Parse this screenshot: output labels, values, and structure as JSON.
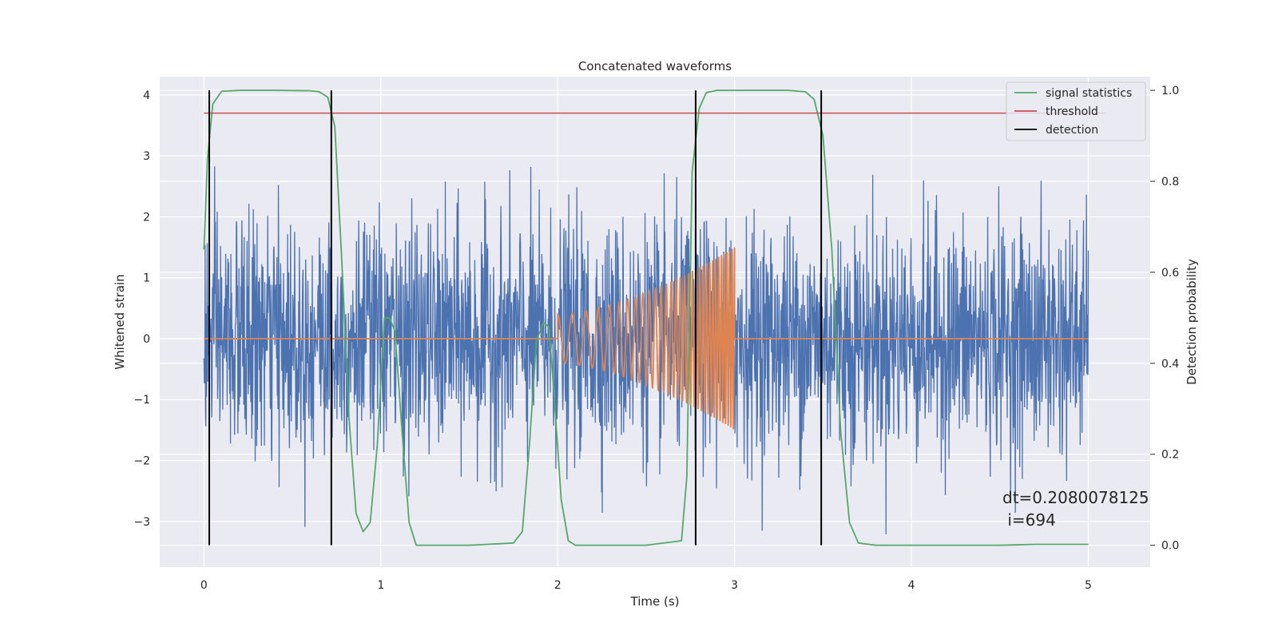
{
  "chart_data": {
    "type": "line",
    "title": "Concatenated waveforms",
    "xlabel": "Time (s)",
    "ylabel": "Whitened strain",
    "ylabel_right": "Detection probability",
    "xlim": [
      -0.25,
      5.35
    ],
    "ylim": [
      -3.75,
      4.3
    ],
    "ylim_right": [
      -0.048,
      1.03
    ],
    "x_ticks": [
      0,
      1,
      2,
      3,
      4,
      5
    ],
    "y_ticks": [
      -3,
      -2,
      -1,
      0,
      1,
      2,
      3,
      4
    ],
    "y_ticks_right": [
      0.0,
      0.2,
      0.4,
      0.6,
      0.8,
      1.0
    ],
    "x_tick_labels": [
      "0",
      "1",
      "2",
      "3",
      "4",
      "5"
    ],
    "y_tick_labels": [
      "−3",
      "−2",
      "−1",
      "0",
      "1",
      "2",
      "3",
      "4"
    ],
    "y_tick_labels_right": [
      "0.0",
      "0.2",
      "0.4",
      "0.6",
      "0.8",
      "1.0"
    ],
    "grid": true,
    "legend_position": "top-right",
    "legend": [
      {
        "label": "signal statistics",
        "color": "#55a868"
      },
      {
        "label": "threshold",
        "color": "#c44e52"
      },
      {
        "label": "detection",
        "color": "#000000"
      }
    ],
    "colors": {
      "strain": "#4c72b0",
      "injection": "#dd8452",
      "signal_statistics": "#55a868",
      "threshold": "#c44e52",
      "detection": "#000000",
      "axes_bg": "#eaeaf2",
      "grid": "#ffffff"
    },
    "series": [
      {
        "name": "signal statistics",
        "axis": "right",
        "x": [
          0,
          0.02,
          0.05,
          0.1,
          0.2,
          0.4,
          0.6,
          0.65,
          0.7,
          0.74,
          0.78,
          0.82,
          0.86,
          0.9,
          0.94,
          0.98,
          1.02,
          1.05,
          1.08,
          1.12,
          1.16,
          1.2,
          1.5,
          1.75,
          1.8,
          1.84,
          1.88,
          1.92,
          1.95,
          1.98,
          2.02,
          2.06,
          2.1,
          2.2,
          2.5,
          2.7,
          2.73,
          2.76,
          2.8,
          2.84,
          2.9,
          3.0,
          3.3,
          3.4,
          3.45,
          3.5,
          3.55,
          3.6,
          3.65,
          3.7,
          3.8,
          4.0,
          4.5,
          4.7,
          5.0
        ],
        "y": [
          0.65,
          0.85,
          0.97,
          0.998,
          1.0,
          1.0,
          0.999,
          0.997,
          0.985,
          0.92,
          0.62,
          0.28,
          0.07,
          0.03,
          0.05,
          0.22,
          0.5,
          0.5,
          0.47,
          0.25,
          0.05,
          0.0,
          0.0,
          0.005,
          0.03,
          0.22,
          0.45,
          0.49,
          0.48,
          0.33,
          0.1,
          0.01,
          0.0,
          0.0,
          0.0,
          0.01,
          0.15,
          0.82,
          0.96,
          0.995,
          1.0,
          1.0,
          1.0,
          0.997,
          0.98,
          0.9,
          0.65,
          0.25,
          0.05,
          0.005,
          0.0,
          0.0,
          0.0,
          0.002,
          0.002
        ]
      },
      {
        "name": "threshold",
        "axis": "right",
        "x": [
          0,
          5.1
        ],
        "y": [
          0.95,
          0.95
        ]
      }
    ],
    "strain_noise": {
      "x_range": [
        0,
        5.0
      ],
      "std": 0.95,
      "max": 3.85,
      "min": -3.3
    },
    "injection": {
      "baseline_y": 0.0,
      "x_start": 2.0,
      "x_end": 3.0,
      "amp_start": 0.4,
      "amp_end": 1.5
    },
    "detections": [
      0.03,
      0.72,
      2.78,
      3.49
    ],
    "detection_y_range": [
      0.0,
      1.0
    ],
    "annotation": {
      "line1": "dt=0.2080078125",
      "line2": " i=694"
    }
  }
}
